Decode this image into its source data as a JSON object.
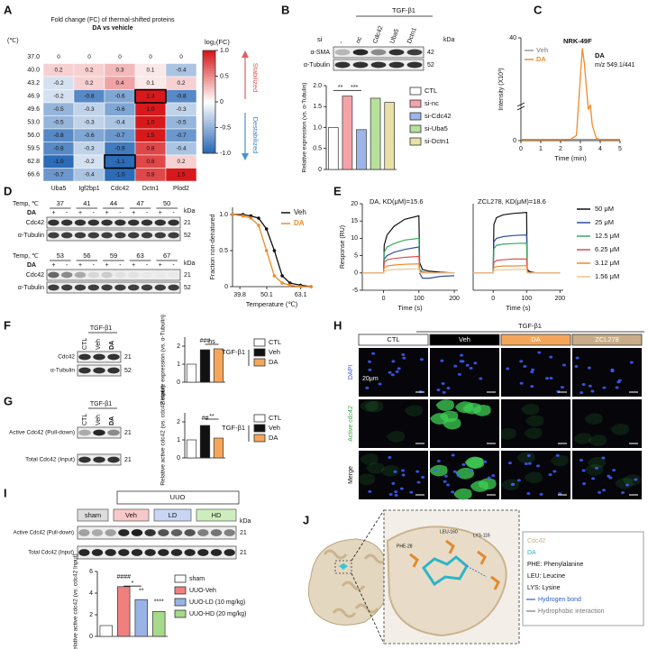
{
  "panels": {
    "A": {
      "letter": "A",
      "title": "Fold change (FC) of thermal-shifted proteins",
      "subtitle": "DA vs vehicle",
      "row_unit": "(℃)",
      "colorbar_title": "log₂(FC)",
      "rows": [
        "37.0",
        "40.0",
        "43.2",
        "46.9",
        "49.6",
        "53.0",
        "56.0",
        "59.5",
        "62.8",
        "66.6"
      ],
      "columns": [
        "Uba5",
        "Igf2bp1",
        "Cdc42",
        "Dctn1",
        "Plod2"
      ],
      "values": [
        [
          0,
          0,
          0,
          0,
          0
        ],
        [
          0.2,
          0.2,
          0.3,
          0.1,
          -0.4
        ],
        [
          -0.2,
          0.2,
          0.4,
          0.1,
          0.2
        ],
        [
          -0.2,
          -0.8,
          -0.6,
          1.3,
          -0.8
        ],
        [
          -0.5,
          -0.3,
          -0.6,
          1.0,
          -0.3
        ],
        [
          -0.5,
          -0.3,
          -0.4,
          1.0,
          -0.5
        ],
        [
          -0.8,
          -0.6,
          -0.7,
          1.5,
          -0.7
        ],
        [
          -0.8,
          -0.3,
          -0.9,
          0.8,
          -0.4
        ],
        [
          -1.0,
          -0.2,
          -1.1,
          0.8,
          0.2
        ],
        [
          -0.7,
          -0.4,
          -1.0,
          0.8,
          1.5
        ]
      ],
      "value_labels": [
        [
          "0",
          "0",
          "0",
          "0",
          "0"
        ],
        [
          "0.2",
          "0.2",
          "0.3",
          "0.1",
          "-0.4"
        ],
        [
          "-0.2",
          "0.2",
          "0.4",
          "0.1",
          "0.2"
        ],
        [
          "-0.2",
          "-0.8",
          "-0.6",
          "1.3",
          "-0.8"
        ],
        [
          "-0.5",
          "-0.3",
          "-0.6",
          "1.0",
          "-0.3"
        ],
        [
          "-0.5",
          "-0.3",
          "-0.4",
          "1.0",
          "-0.5"
        ],
        [
          "-0.8",
          "-0.6",
          "-0.7",
          "1.5",
          "-0.7"
        ],
        [
          "-0.8",
          "-0.3",
          "-0.9",
          "0.8",
          "-0.4"
        ],
        [
          "-1.0",
          "-0.2",
          "-1.1",
          "0.8",
          "0.2"
        ],
        [
          "-0.7",
          "-0.4",
          "-1.0",
          "0.8",
          "1.5"
        ]
      ],
      "clim": [
        -1,
        1
      ],
      "cticks": [
        {
          "value": 1,
          "label": "1.0"
        },
        0.5,
        0,
        -0.5,
        {
          "value": -1,
          "label": "-1.0"
        }
      ],
      "up_label": "Stabilized",
      "down_label": "Destabilized"
    },
    "B": {
      "letter": "B",
      "treatment": "TGF-β1",
      "si_label": "si",
      "lanes": [
        "-",
        "nc",
        "Cdc42",
        "Uba5",
        "Dctn1"
      ],
      "kda": "kDa",
      "blots": [
        {
          "name": "α-SMA",
          "kda": "42"
        },
        {
          "name": "α-Tubulin",
          "kda": "52"
        }
      ],
      "chart": {
        "type": "bar",
        "ylabel": "Relative expression (vs. α-Tubulin)",
        "categories": [
          "CTL",
          "si-nc",
          "si-Cdc42",
          "si-Uba5",
          "si-Dctn1"
        ],
        "values": [
          1.0,
          1.75,
          0.95,
          1.7,
          1.6
        ],
        "colors": [
          "#ffffff",
          "#f4a3a8",
          "#9db5e8",
          "#b7e09b",
          "#e9e0a6"
        ],
        "ylim": [
          0,
          2
        ],
        "yticks": [
          0,
          0.5,
          {
            "value": 1,
            "label": "1.0"
          },
          1.5,
          {
            "value": 2,
            "label": "2.0"
          }
        ],
        "annotations": [
          "**",
          "***"
        ]
      }
    },
    "C": {
      "letter": "C",
      "cell_line": "NRK-49F",
      "compound": "DA",
      "transition": "m/z 549.1/441",
      "chart": {
        "type": "line",
        "xlabel": "Time (min)",
        "ylabel": "Intensity (X10³)",
        "x": [
          0,
          0.5,
          1,
          1.5,
          2,
          2.5,
          2.8,
          3.0,
          3.1,
          3.2,
          3.4,
          3.5,
          3.6,
          3.8,
          4,
          4.5,
          5
        ],
        "series": [
          {
            "name": "Veh",
            "color": "#9a9a9a",
            "values": [
              0.5,
              0.5,
              0.5,
              0.5,
              0.5,
              0.5,
              0.5,
              0.5,
              0.5,
              0.5,
              0.5,
              0.5,
              0.5,
              0.5,
              0.5,
              0.5,
              0.5
            ]
          },
          {
            "name": "DA",
            "color": "#f08a2c",
            "values": [
              0.3,
              0.3,
              0.3,
              0.3,
              0.3,
              0.5,
              2,
              25,
              36,
              30,
              12,
              14,
              6,
              1,
              0.3,
              0.3,
              0.3
            ]
          }
        ],
        "xlim": [
          0,
          5
        ],
        "xticks": [
          0,
          1,
          2,
          3,
          4,
          5
        ],
        "ylim": [
          0,
          40
        ],
        "yticks": [
          0,
          40
        ]
      }
    },
    "D": {
      "letter": "D",
      "temp_label": "Temp, ℃",
      "drug": "DA",
      "signs": [
        "+",
        "-"
      ],
      "kda": "kDa",
      "temps_top": [
        "37",
        "41",
        "44",
        "47",
        "50"
      ],
      "temps_bottom": [
        "53",
        "56",
        "59",
        "63",
        "67"
      ],
      "blots": [
        {
          "name": "Cdc42",
          "kda": "21"
        },
        {
          "name": "α-Tubulin",
          "kda": "52"
        }
      ],
      "chart": {
        "type": "line",
        "xlabel": "Temperature (℃)",
        "ylabel": "Fraction non-denatured",
        "x": [
          37,
          41,
          44,
          47,
          50,
          53,
          56,
          59,
          63,
          67
        ],
        "series": [
          {
            "name": "Veh",
            "color": "#111111",
            "values": [
              1,
              1,
              0.98,
              0.95,
              0.8,
              0.5,
              0.15,
              0.05,
              0.02,
              0
            ]
          },
          {
            "name": "DA",
            "color": "#f08a2c",
            "values": [
              1,
              0.98,
              0.95,
              0.85,
              0.5,
              0.15,
              0.05,
              0.02,
              0,
              0
            ]
          }
        ],
        "xlim": [
          37,
          67
        ],
        "xticks": [
          39.8,
          50.1,
          63.1
        ],
        "ylim": [
          0,
          1.1
        ],
        "yticks": [
          0,
          0.5,
          {
            "value": 1,
            "label": "1.0"
          }
        ]
      }
    },
    "E": {
      "letter": "E",
      "ylabel": "Response (RU)",
      "charts": [
        {
          "type": "line",
          "title": "DA, KD(μM)=15.6",
          "xlabel": "Time (s)",
          "x": [
            -60,
            0,
            2,
            10,
            30,
            60,
            100,
            102,
            110,
            130,
            160,
            200
          ],
          "xlim": [
            -60,
            210
          ],
          "xticks": [
            0,
            100,
            200
          ],
          "ylim": [
            -5,
            20
          ],
          "yticks": [
            -5,
            0,
            5,
            10,
            15,
            20
          ],
          "series": [
            {
              "name": "50 μM",
              "color": "#111111",
              "values": [
                0,
                0,
                8,
                11,
                13.5,
                15.5,
                16.5,
                3,
                1,
                0.5,
                0.2,
                0
              ]
            },
            {
              "name": "25 μM",
              "color": "#2f4ea0",
              "values": [
                0,
                0,
                4,
                5,
                6,
                6.8,
                7.5,
                0,
                -1.5,
                -1.5,
                -1,
                -0.8
              ]
            },
            {
              "name": "12.5 μM",
              "color": "#3aa860",
              "values": [
                0,
                0,
                6,
                7.5,
                8.5,
                9.5,
                10,
                1,
                0.3,
                0.1,
                0,
                0
              ]
            },
            {
              "name": "6.25 μM",
              "color": "#d9534f",
              "values": [
                0,
                0,
                3,
                3.8,
                4.2,
                4.5,
                4.8,
                0.5,
                0.2,
                0,
                0,
                0
              ]
            },
            {
              "name": "3.12 μM",
              "color": "#f0892e",
              "values": [
                0,
                0,
                1.5,
                2,
                2.3,
                2.5,
                2.6,
                0.3,
                0,
                0,
                0,
                0
              ]
            },
            {
              "name": "1.56 μM",
              "color": "#f3c48f",
              "values": [
                0,
                0,
                0.5,
                0.8,
                1,
                1.1,
                1.2,
                0.1,
                0,
                0,
                0,
                0
              ]
            }
          ]
        },
        {
          "type": "line",
          "title": "ZCL278, KD(μM)=18.6",
          "xlabel": "Time (s)",
          "x": [
            -60,
            0,
            2,
            10,
            30,
            60,
            100,
            102,
            110,
            130,
            160,
            200
          ],
          "xlim": [
            -60,
            210
          ],
          "xticks": [
            0,
            100,
            200
          ],
          "ylim": [
            -5,
            20
          ],
          "series": [
            {
              "values": [
                0,
                0,
                14,
                16,
                16.8,
                17.2,
                17.5,
                1,
                0.3,
                0,
                0,
                0
              ]
            },
            {
              "values": [
                0,
                0,
                9,
                10,
                10.5,
                10.8,
                11,
                0.5,
                0,
                0,
                0,
                0
              ]
            },
            {
              "values": [
                0,
                0,
                7,
                8,
                8.3,
                8.5,
                8.6,
                0.4,
                0,
                0,
                0,
                0
              ]
            },
            {
              "values": [
                0,
                0,
                3,
                3.6,
                3.8,
                4,
                4,
                0.2,
                0,
                0,
                0,
                0
              ]
            },
            {
              "values": [
                0,
                0,
                1.5,
                1.8,
                2,
                2,
                2.1,
                0.1,
                0,
                0,
                0,
                0
              ]
            },
            {
              "values": [
                0,
                0,
                0.6,
                0.8,
                0.9,
                1,
                1,
                0,
                0,
                0,
                0,
                0
              ]
            }
          ]
        }
      ]
    },
    "F": {
      "letter": "F",
      "treatment": "TGF-β1",
      "lanes": [
        "CTL",
        "Veh",
        "DA"
      ],
      "blots": [
        {
          "name": "Cdc42",
          "kda": "21"
        },
        {
          "name": "α-Tubulin",
          "kda": "52"
        }
      ],
      "chart": {
        "type": "bar",
        "ylabel": "Relative expression (vs. α-Tubulin)",
        "categories": [
          "CTL",
          "Veh",
          "DA"
        ],
        "values": [
          1.0,
          1.8,
          1.85
        ],
        "colors": [
          "#ffffff",
          "#111111",
          "#f5a65b"
        ],
        "ylim": [
          0,
          2.5
        ],
        "yticks": [
          0,
          1,
          2
        ],
        "annotations": [
          "###",
          "ns"
        ],
        "group_label": "TGF-β1"
      }
    },
    "G": {
      "letter": "G",
      "treatment": "TGF-β1",
      "lanes": [
        "CTL",
        "Veh",
        "DA"
      ],
      "blots": [
        {
          "name": "Active Cdc42 (Pull-down)",
          "kda": "21"
        },
        {
          "name": "Total Cdc42 (Input)",
          "kda": "21"
        }
      ],
      "chart": {
        "type": "bar",
        "ylabel": "Relative active cdc42 (vs. cdc42 Input)",
        "categories": [
          "CTL",
          "Veh",
          "DA"
        ],
        "values": [
          1.0,
          1.8,
          1.1
        ],
        "colors": [
          "#ffffff",
          "#111111",
          "#f5a65b"
        ],
        "ylim": [
          0,
          2.5
        ],
        "yticks": [
          0,
          1,
          2
        ],
        "annotations": [
          "##",
          "**"
        ],
        "group_label": "TGF-β1"
      }
    },
    "H": {
      "letter": "H",
      "treatment": "TGF-β1",
      "columns": [
        "CTL",
        "Veh",
        "DA",
        "ZCL278"
      ],
      "rows": [
        "DAPI",
        "Active cdc42",
        "Merge"
      ],
      "scale_bar": "20μm"
    },
    "I": {
      "letter": "I",
      "model": "UUO",
      "groups": [
        "sham",
        "Veh",
        "LD",
        "HD"
      ],
      "kda": "kDa",
      "blots": [
        {
          "name": "Active Cdc42 (Pull-down)",
          "kda": "21"
        },
        {
          "name": "Total Cdc42 (Input)",
          "kda": "21"
        }
      ],
      "chart": {
        "type": "bar",
        "ylabel": "Relative active cdc42 (vs. cdc42 Input)",
        "categories": [
          "sham",
          "UUO-Veh",
          "UUO-LD (10 mg/kg)",
          "UUO-HD (20 mg/kg)"
        ],
        "values": [
          1.0,
          4.6,
          3.4,
          2.3
        ],
        "colors": [
          "#ffffff",
          "#f08080",
          "#9ab3e6",
          "#a6d98a"
        ],
        "ylim": [
          0,
          6
        ],
        "yticks": [
          0,
          2,
          4,
          6
        ],
        "annotations": [
          "####",
          "*",
          "**",
          "****"
        ]
      }
    },
    "J": {
      "letter": "J",
      "legend": [
        "Cdc42",
        "DA",
        "PHE: Phenylalanine",
        "LEU: Leucine",
        "LYS: Lysine",
        "Hydrogen bond",
        "Hydrophobic interaction"
      ],
      "residues": [
        "PHE-28",
        "LEU-160",
        "LYS-116"
      ]
    }
  }
}
